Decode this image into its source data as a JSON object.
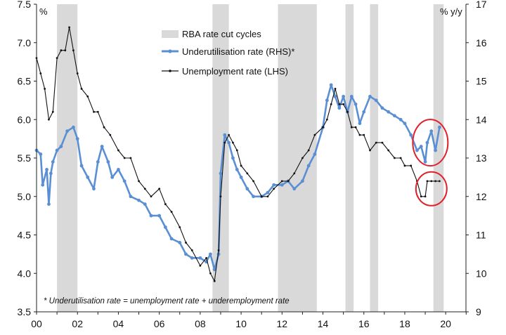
{
  "chart_data": {
    "type": "line",
    "x_tick_labels": [
      "00",
      "02",
      "04",
      "06",
      "08",
      "10",
      "12",
      "14",
      "16",
      "18",
      "20"
    ],
    "x_tick_values": [
      2000,
      2002,
      2004,
      2006,
      2008,
      2010,
      2012,
      2014,
      2016,
      2018,
      2020
    ],
    "xlim": [
      2000,
      2021
    ],
    "left_axis": {
      "unit_label": "%",
      "ylim": [
        3.5,
        7.5
      ],
      "ticks": [
        "3.5",
        "4.0",
        "4.5",
        "5.0",
        "5.5",
        "6.0",
        "6.5",
        "7.0",
        "7.5"
      ]
    },
    "right_axis": {
      "unit_label": "% y/y",
      "ylim": [
        9,
        17
      ],
      "ticks": [
        "9",
        "10",
        "11",
        "12",
        "13",
        "14",
        "15",
        "16",
        "17"
      ]
    },
    "shaded_periods_label": "RBA rate cut cycles",
    "shaded_periods": [
      [
        2001.0,
        2002.0
      ],
      [
        2008.6,
        2009.4
      ],
      [
        2011.8,
        2013.7
      ],
      [
        2015.1,
        2015.5
      ],
      [
        2016.3,
        2016.7
      ],
      [
        2019.4,
        2019.9
      ]
    ],
    "series": [
      {
        "name": "Underutilisation rate (RHS)*",
        "axis": "right",
        "color": "#5b8fd4",
        "x": [
          2000.0,
          2000.2,
          2000.3,
          2000.5,
          2000.6,
          2000.7,
          2000.8,
          2001.0,
          2001.2,
          2001.5,
          2001.8,
          2002.0,
          2002.2,
          2002.5,
          2002.8,
          2003.0,
          2003.2,
          2003.5,
          2003.7,
          2004.0,
          2004.3,
          2004.6,
          2005.0,
          2005.3,
          2005.6,
          2006.0,
          2006.3,
          2006.6,
          2007.0,
          2007.3,
          2007.6,
          2008.0,
          2008.3,
          2008.5,
          2008.7,
          2008.9,
          2009.0,
          2009.2,
          2009.4,
          2009.6,
          2009.8,
          2010.0,
          2010.3,
          2010.6,
          2011.0,
          2011.3,
          2011.6,
          2012.0,
          2012.3,
          2012.6,
          2013.0,
          2013.3,
          2013.6,
          2014.0,
          2014.2,
          2014.4,
          2014.6,
          2014.8,
          2015.0,
          2015.2,
          2015.4,
          2015.6,
          2015.8,
          2016.0,
          2016.3,
          2016.6,
          2016.9,
          2017.2,
          2017.5,
          2017.8,
          2018.0,
          2018.3,
          2018.6,
          2018.8,
          2019.0,
          2019.1,
          2019.3,
          2019.5,
          2019.7
        ],
        "y": [
          13.2,
          13.1,
          12.3,
          12.7,
          11.8,
          12.6,
          12.9,
          13.2,
          13.3,
          13.7,
          13.8,
          13.5,
          12.8,
          12.5,
          12.2,
          12.9,
          13.3,
          12.9,
          12.5,
          12.7,
          12.4,
          12.0,
          11.9,
          11.8,
          11.5,
          11.5,
          11.2,
          10.9,
          10.8,
          10.5,
          10.4,
          10.4,
          10.3,
          10.5,
          10.1,
          10.5,
          12.6,
          13.6,
          13.4,
          13.0,
          12.7,
          12.5,
          12.2,
          12.0,
          12.0,
          12.1,
          12.3,
          12.3,
          12.4,
          12.2,
          12.4,
          12.8,
          13.1,
          13.8,
          14.5,
          14.9,
          14.6,
          14.3,
          14.6,
          14.2,
          14.6,
          14.4,
          13.9,
          14.2,
          14.6,
          14.5,
          14.3,
          14.2,
          14.1,
          14.0,
          13.9,
          13.6,
          13.2,
          13.3,
          12.9,
          13.4,
          13.7,
          13.2,
          13.8
        ]
      },
      {
        "name": "Unemployment rate (LHS)",
        "axis": "left",
        "color": "#111111",
        "x": [
          2000.0,
          2000.2,
          2000.4,
          2000.6,
          2000.8,
          2001.0,
          2001.2,
          2001.4,
          2001.6,
          2001.8,
          2002.0,
          2002.2,
          2002.5,
          2002.8,
          2003.0,
          2003.3,
          2003.6,
          2004.0,
          2004.3,
          2004.6,
          2005.0,
          2005.3,
          2005.6,
          2006.0,
          2006.3,
          2006.6,
          2007.0,
          2007.3,
          2007.6,
          2008.0,
          2008.3,
          2008.5,
          2008.7,
          2008.9,
          2009.0,
          2009.2,
          2009.4,
          2009.6,
          2009.8,
          2010.0,
          2010.3,
          2010.6,
          2011.0,
          2011.3,
          2011.6,
          2012.0,
          2012.3,
          2012.6,
          2013.0,
          2013.3,
          2013.6,
          2014.0,
          2014.2,
          2014.4,
          2014.6,
          2014.8,
          2015.0,
          2015.2,
          2015.4,
          2015.6,
          2015.8,
          2016.0,
          2016.3,
          2016.6,
          2016.9,
          2017.2,
          2017.5,
          2017.8,
          2018.0,
          2018.3,
          2018.6,
          2018.8,
          2019.0,
          2019.1,
          2019.3,
          2019.5,
          2019.7
        ],
        "y": [
          6.8,
          6.6,
          6.4,
          6.0,
          6.1,
          6.8,
          6.9,
          6.9,
          7.2,
          6.9,
          6.6,
          6.4,
          6.3,
          6.1,
          6.1,
          5.9,
          5.8,
          5.6,
          5.5,
          5.5,
          5.2,
          5.1,
          5.0,
          5.1,
          4.9,
          4.8,
          4.6,
          4.4,
          4.3,
          4.1,
          4.2,
          4.0,
          3.9,
          4.3,
          5.0,
          5.7,
          5.8,
          5.7,
          5.6,
          5.4,
          5.3,
          5.2,
          5.0,
          5.0,
          5.1,
          5.2,
          5.2,
          5.3,
          5.5,
          5.6,
          5.8,
          5.9,
          6.0,
          6.2,
          6.4,
          6.2,
          6.2,
          6.1,
          5.9,
          5.9,
          5.8,
          5.8,
          5.6,
          5.7,
          5.7,
          5.6,
          5.5,
          5.5,
          5.4,
          5.4,
          5.2,
          5.0,
          5.0,
          5.2,
          5.2,
          5.2,
          5.2
        ]
      }
    ],
    "highlight_circles": [
      "2019 underutilisation",
      "2019 unemployment"
    ],
    "footnote": "* Underutilisation rate = unemployment rate + underemployment rate",
    "colors": {
      "shade": "#d9d9d9",
      "circle": "#e0202a",
      "axis": "#222222"
    }
  }
}
